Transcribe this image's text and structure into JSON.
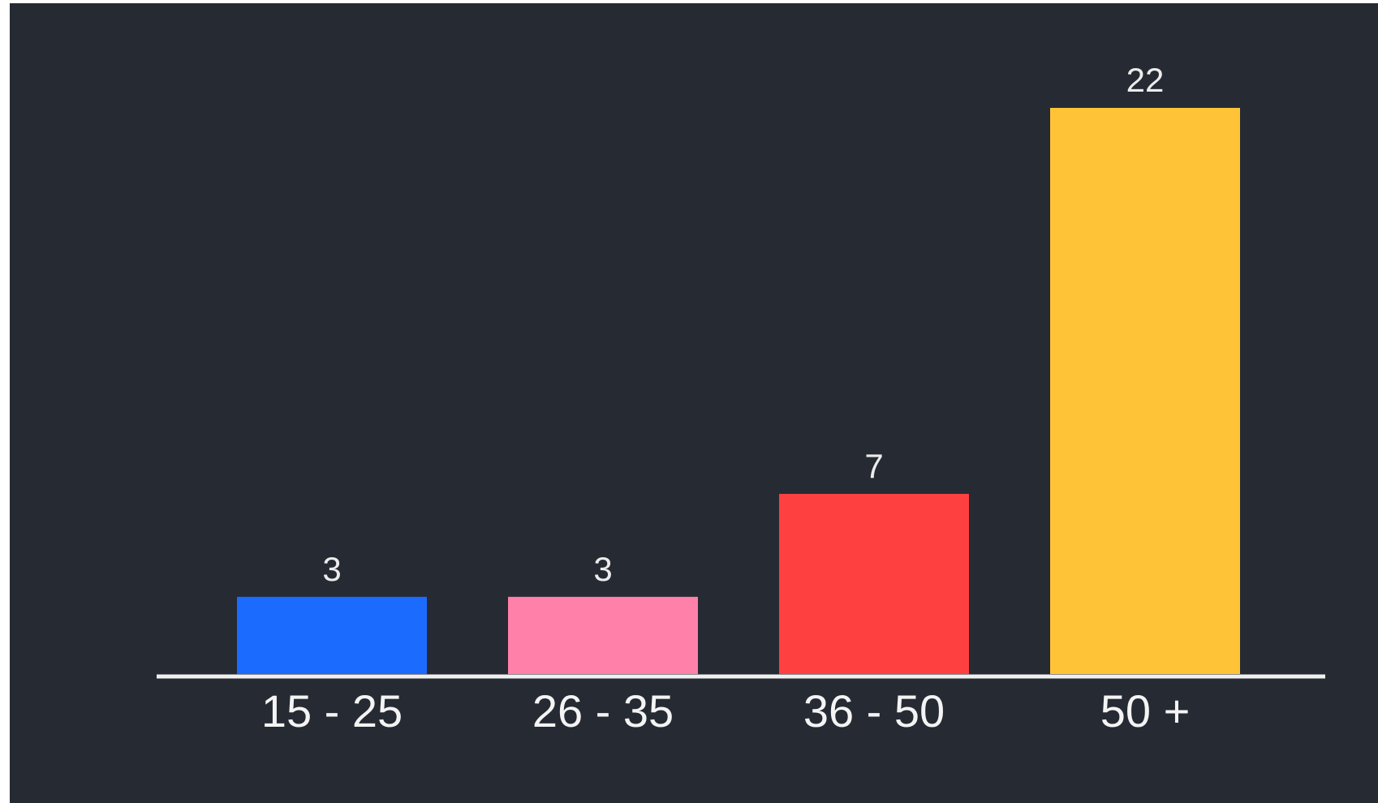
{
  "chart_data": {
    "type": "bar",
    "categories": [
      "15 - 25",
      "26 - 35",
      "36 - 50",
      "50 +"
    ],
    "values": [
      3,
      3,
      7,
      22
    ],
    "value_labels": [
      "3",
      "3",
      "7",
      "22"
    ],
    "colors": [
      "#1b6bff",
      "#ff80a9",
      "#ff4040",
      "#ffc337"
    ],
    "background_color": "#262a33",
    "axis_color": "#f0f0f0",
    "text_color": "#ececec",
    "title": "",
    "xlabel": "",
    "ylabel": "",
    "ylim": [
      0,
      22
    ],
    "grid": false,
    "legend": "none"
  }
}
